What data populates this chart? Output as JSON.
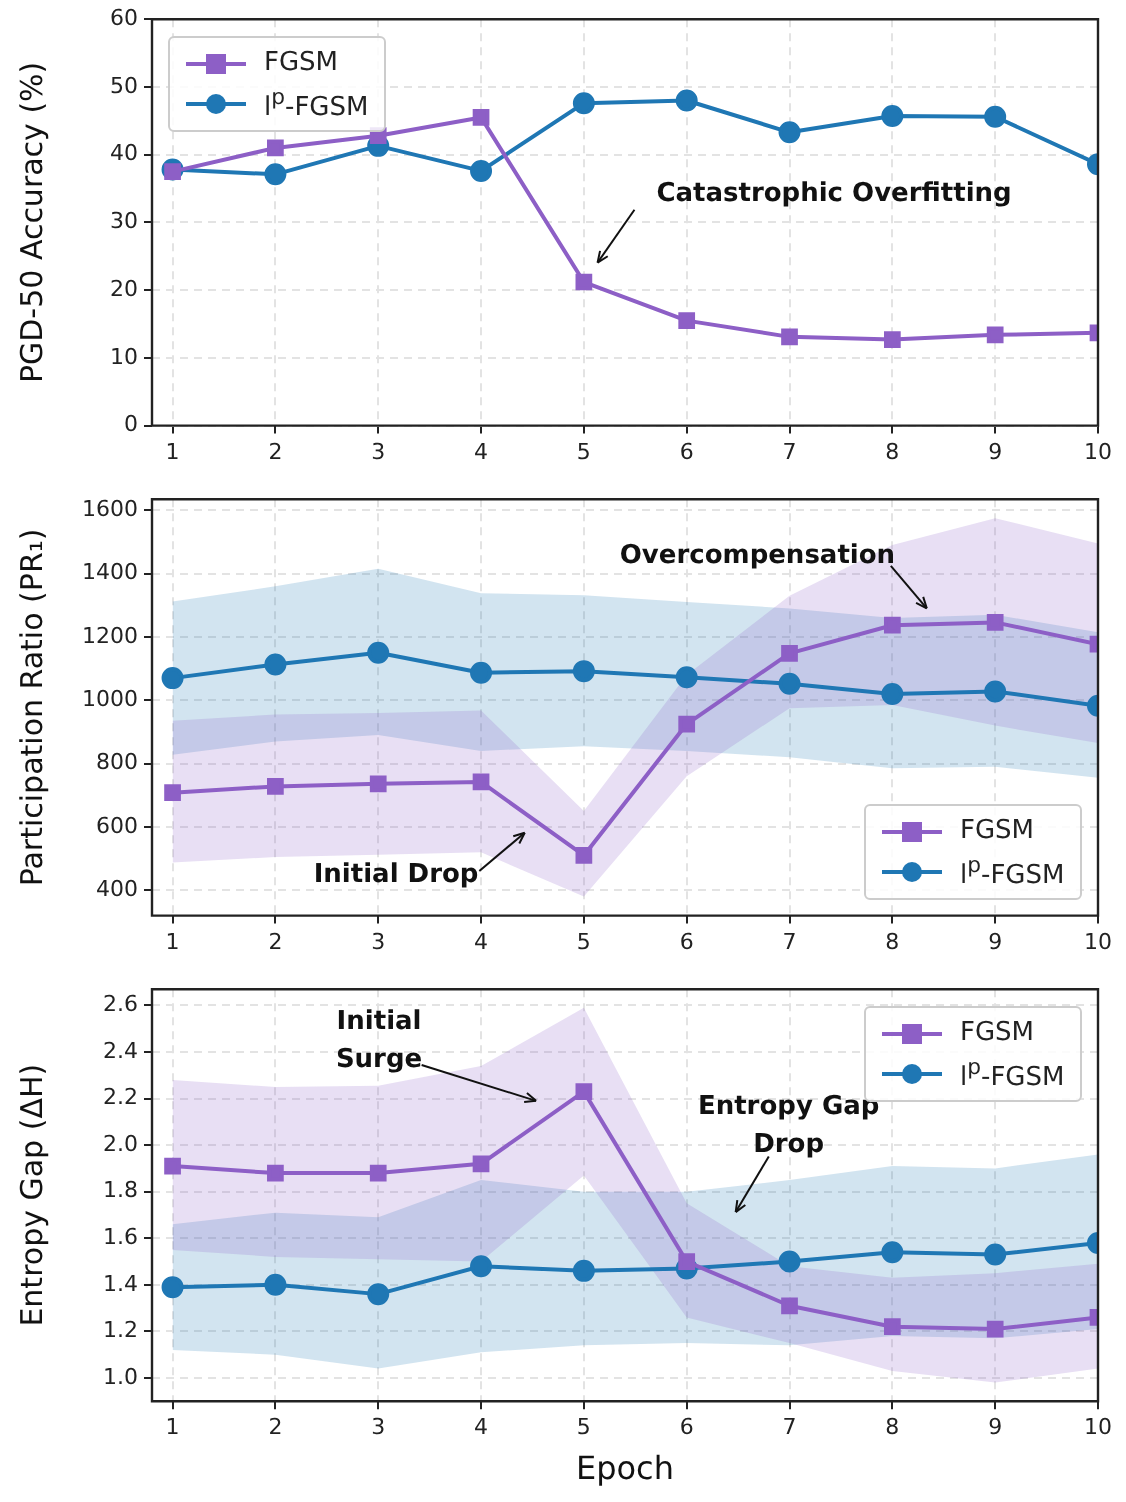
{
  "chart_data": [
    {
      "type": "line",
      "ylabel": "PGD-50 Accuracy (%)",
      "x": [
        1,
        2,
        3,
        4,
        5,
        6,
        7,
        8,
        9,
        10
      ],
      "xlim": [
        0.8,
        10
      ],
      "xticks": [
        1,
        2,
        3,
        4,
        5,
        6,
        7,
        8,
        9,
        10
      ],
      "ylim": [
        0,
        60
      ],
      "yticks": [
        0,
        10,
        20,
        30,
        40,
        50,
        60
      ],
      "grid": true,
      "legend": "top left",
      "series": [
        {
          "name": "FGSM",
          "color": "#8d5fc6",
          "marker": "square",
          "values": [
            37.5,
            41,
            42.8,
            45.5,
            21.2,
            15.5,
            13.1,
            12.7,
            13.4,
            13.7
          ]
        },
        {
          "name": "l$^{p}$-FGSM",
          "color": "#1f77b4",
          "marker": "circle",
          "values": [
            37.8,
            37.1,
            41.3,
            37.6,
            47.6,
            48,
            43.3,
            45.7,
            45.6,
            38.6
          ]
        }
      ],
      "annotations": [
        "Catastrophic Overfitting"
      ]
    },
    {
      "type": "line",
      "ylabel": "Participation Ratio (PR₁)",
      "x": [
        1,
        2,
        3,
        4,
        5,
        6,
        7,
        8,
        9,
        10
      ],
      "xlim": [
        0.8,
        10
      ],
      "xticks": [
        1,
        2,
        3,
        4,
        5,
        6,
        7,
        8,
        9,
        10
      ],
      "ylim": [
        320,
        1635
      ],
      "yticks": [
        400,
        600,
        800,
        1000,
        1200,
        1400,
        1600
      ],
      "grid": true,
      "legend": "bottom right",
      "series": [
        {
          "name": "FGSM",
          "color": "#8d5fc6",
          "marker": "square",
          "values": [
            708,
            728,
            736,
            742,
            510,
            925,
            1148,
            1237,
            1246,
            1177
          ],
          "lower": [
            488,
            505,
            512,
            520,
            380,
            760,
            975,
            985,
            920,
            865
          ],
          "upper": [
            935,
            955,
            960,
            968,
            650,
            1080,
            1330,
            1490,
            1575,
            1495
          ]
        },
        {
          "name": "l$^{p}$-FGSM",
          "color": "#1f77b4",
          "marker": "circle",
          "values": [
            1070,
            1113,
            1150,
            1087,
            1092,
            1073,
            1052,
            1020,
            1028,
            983
          ],
          "lower": [
            828,
            870,
            890,
            840,
            855,
            840,
            820,
            785,
            790,
            755
          ],
          "upper": [
            1312,
            1360,
            1415,
            1338,
            1332,
            1310,
            1290,
            1260,
            1270,
            1215
          ]
        }
      ],
      "annotations": [
        "Overcompensation",
        "Initial Drop"
      ]
    },
    {
      "type": "line",
      "ylabel": "Entropy Gap (ΔH)",
      "xlabel": "Epoch",
      "x": [
        1,
        2,
        3,
        4,
        5,
        6,
        7,
        8,
        9,
        10
      ],
      "xlim": [
        0.8,
        10
      ],
      "xticks": [
        1,
        2,
        3,
        4,
        5,
        6,
        7,
        8,
        9,
        10
      ],
      "ylim": [
        0.9,
        2.67
      ],
      "yticks": [
        {
          "value": 1,
          "label": "1.0"
        },
        1.2,
        1.4,
        1.6,
        1.8,
        {
          "value": 2,
          "label": "2.0"
        },
        2.2,
        2.4,
        2.6
      ],
      "grid": true,
      "legend": "top right",
      "series": [
        {
          "name": "FGSM",
          "color": "#8d5fc6",
          "marker": "square",
          "values": [
            1.91,
            1.88,
            1.88,
            1.92,
            2.23,
            1.5,
            1.31,
            1.22,
            1.21,
            1.26
          ],
          "lower": [
            1.55,
            1.52,
            1.51,
            1.5,
            1.87,
            1.26,
            1.15,
            1.03,
            0.98,
            1.04
          ],
          "upper": [
            2.28,
            2.25,
            2.255,
            2.34,
            2.59,
            1.75,
            1.48,
            1.43,
            1.45,
            1.49
          ]
        },
        {
          "name": "l$^{p}$-FGSM",
          "color": "#1f77b4",
          "marker": "circle",
          "values": [
            1.39,
            1.4,
            1.36,
            1.48,
            1.46,
            1.47,
            1.5,
            1.54,
            1.53,
            1.58
          ],
          "lower": [
            1.12,
            1.1,
            1.04,
            1.11,
            1.14,
            1.15,
            1.14,
            1.18,
            1.17,
            1.21
          ],
          "upper": [
            1.66,
            1.71,
            1.69,
            1.85,
            1.8,
            1.8,
            1.85,
            1.91,
            1.9,
            1.96
          ]
        }
      ],
      "annotations": [
        "Initial Surge",
        "Entropy Gap Drop"
      ]
    }
  ]
}
